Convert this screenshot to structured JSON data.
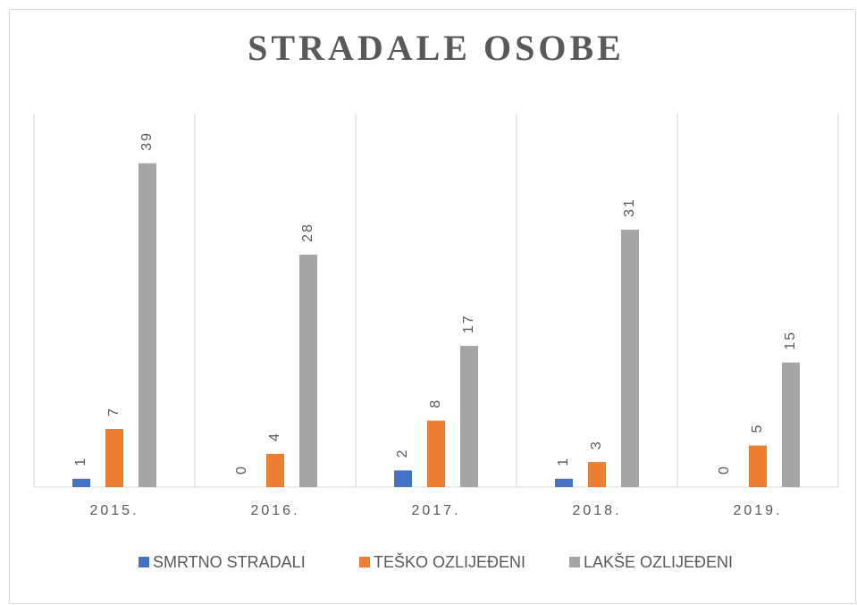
{
  "chart_data": {
    "type": "bar",
    "title": "STRADALE OSOBE",
    "categories": [
      "2015.",
      "2016.",
      "2017.",
      "2018.",
      "2019."
    ],
    "series": [
      {
        "name": "SMRTNO STRADALI",
        "color": "#4472c4",
        "values": [
          1,
          0,
          2,
          1,
          0
        ]
      },
      {
        "name": "TEŠKO OZLIJEĐENI",
        "color": "#ed7d31",
        "values": [
          7,
          4,
          8,
          3,
          5
        ]
      },
      {
        "name": "LAKŠE OZLIJEĐENI",
        "color": "#a5a5a5",
        "values": [
          39,
          28,
          17,
          31,
          15
        ]
      }
    ],
    "ylim": [
      0,
      45
    ],
    "legend": "bottom"
  }
}
